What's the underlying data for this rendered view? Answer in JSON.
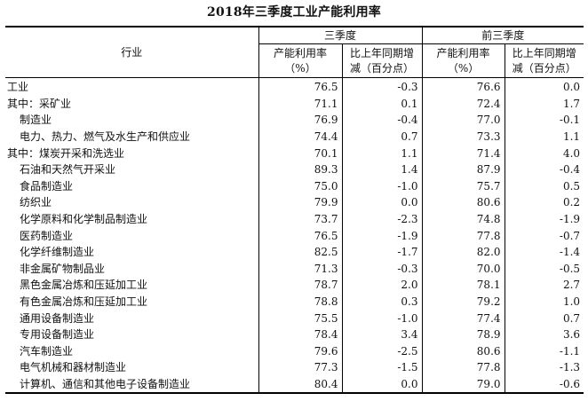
{
  "title": "2018年三季度工业产能利用率",
  "header": {
    "industry": "行业",
    "q3": "三季度",
    "first3": "前三季度",
    "rate_line1": "产能利用率",
    "rate_line2": "（%）",
    "chg_line1": "比上年同期增",
    "chg_line2": "减（百分点）"
  },
  "rows": [
    {
      "name": "工业",
      "indent": false,
      "q3_rate": "76.5",
      "q3_chg": "-0.3",
      "f3_rate": "76.6",
      "f3_chg": "0.0"
    },
    {
      "name": "其中：采矿业",
      "indent": false,
      "q3_rate": "71.1",
      "q3_chg": "0.1",
      "f3_rate": "72.4",
      "f3_chg": "1.7"
    },
    {
      "name": "制造业",
      "indent": true,
      "q3_rate": "76.9",
      "q3_chg": "-0.4",
      "f3_rate": "77.0",
      "f3_chg": "-0.1"
    },
    {
      "name": "电力、热力、燃气及水生产和供应业",
      "indent": true,
      "q3_rate": "74.4",
      "q3_chg": "0.7",
      "f3_rate": "73.3",
      "f3_chg": "1.1"
    },
    {
      "name": "其中：煤炭开采和洗选业",
      "indent": false,
      "q3_rate": "70.1",
      "q3_chg": "1.1",
      "f3_rate": "71.4",
      "f3_chg": "4.0"
    },
    {
      "name": "石油和天然气开采业",
      "indent": true,
      "q3_rate": "89.3",
      "q3_chg": "1.4",
      "f3_rate": "87.9",
      "f3_chg": "-0.4"
    },
    {
      "name": "食品制造业",
      "indent": true,
      "q3_rate": "75.0",
      "q3_chg": "-1.0",
      "f3_rate": "75.7",
      "f3_chg": "0.5"
    },
    {
      "name": "纺织业",
      "indent": true,
      "q3_rate": "79.9",
      "q3_chg": "0.0",
      "f3_rate": "80.6",
      "f3_chg": "0.2"
    },
    {
      "name": "化学原料和化学制品制造业",
      "indent": true,
      "q3_rate": "73.7",
      "q3_chg": "-2.3",
      "f3_rate": "74.8",
      "f3_chg": "-1.9"
    },
    {
      "name": "医药制造业",
      "indent": true,
      "q3_rate": "76.5",
      "q3_chg": "-1.9",
      "f3_rate": "77.8",
      "f3_chg": "-0.7"
    },
    {
      "name": "化学纤维制造业",
      "indent": true,
      "q3_rate": "82.5",
      "q3_chg": "-1.7",
      "f3_rate": "82.0",
      "f3_chg": "-1.4"
    },
    {
      "name": "非金属矿物制品业",
      "indent": true,
      "q3_rate": "71.3",
      "q3_chg": "-0.3",
      "f3_rate": "70.0",
      "f3_chg": "-0.5"
    },
    {
      "name": "黑色金属冶炼和压延加工业",
      "indent": true,
      "q3_rate": "78.7",
      "q3_chg": "2.0",
      "f3_rate": "78.1",
      "f3_chg": "2.7"
    },
    {
      "name": "有色金属冶炼和压延加工业",
      "indent": true,
      "q3_rate": "78.8",
      "q3_chg": "0.3",
      "f3_rate": "79.2",
      "f3_chg": "1.0"
    },
    {
      "name": "通用设备制造业",
      "indent": true,
      "q3_rate": "75.5",
      "q3_chg": "-1.0",
      "f3_rate": "77.4",
      "f3_chg": "0.7"
    },
    {
      "name": "专用设备制造业",
      "indent": true,
      "q3_rate": "78.4",
      "q3_chg": "3.4",
      "f3_rate": "78.9",
      "f3_chg": "3.6"
    },
    {
      "name": "汽车制造业",
      "indent": true,
      "q3_rate": "79.6",
      "q3_chg": "-2.5",
      "f3_rate": "80.6",
      "f3_chg": "-1.1"
    },
    {
      "name": "电气机械和器材制造业",
      "indent": true,
      "q3_rate": "77.3",
      "q3_chg": "-1.5",
      "f3_rate": "77.8",
      "f3_chg": "-1.3"
    },
    {
      "name": "计算机、通信和其他电子设备制造业",
      "indent": true,
      "q3_rate": "80.4",
      "q3_chg": "0.0",
      "f3_rate": "79.0",
      "f3_chg": "-0.6"
    }
  ]
}
